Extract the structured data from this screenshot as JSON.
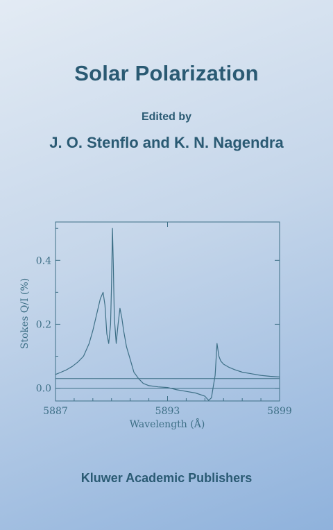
{
  "cover": {
    "title": "Solar Polarization",
    "edited_by": "Edited by",
    "editors": "J. O. Stenflo and K. N. Nagendra",
    "publisher": "Kluwer Academic Publishers"
  },
  "colors": {
    "text": "#2a5a73",
    "plot": "#3d6f86"
  },
  "chart_data": {
    "type": "line",
    "title": "",
    "xlabel": "Wavelength (Å)",
    "ylabel": "Stokes Q/I (%)",
    "xlim": [
      5887,
      5899
    ],
    "ylim": [
      -0.04,
      0.52
    ],
    "xticks": [
      5887,
      5893,
      5899
    ],
    "xtick_labels": [
      "5887",
      "5893",
      "5899"
    ],
    "yticks": [
      0.0,
      0.2,
      0.4
    ],
    "ytick_labels": [
      "0.0",
      "0.2",
      "0.4"
    ],
    "reference_lines": [
      0.0,
      0.03
    ],
    "x": [
      5887.0,
      5887.3,
      5887.6,
      5887.9,
      5888.2,
      5888.5,
      5888.8,
      5889.0,
      5889.2,
      5889.4,
      5889.55,
      5889.65,
      5889.75,
      5889.85,
      5889.95,
      5890.0,
      5890.05,
      5890.1,
      5890.15,
      5890.25,
      5890.35,
      5890.45,
      5890.55,
      5890.65,
      5890.8,
      5891.0,
      5891.2,
      5891.45,
      5891.7,
      5892.0,
      5892.5,
      5893.0,
      5893.5,
      5894.0,
      5894.5,
      5895.0,
      5895.2,
      5895.35,
      5895.45,
      5895.55,
      5895.65,
      5895.75,
      5895.85,
      5896.0,
      5896.3,
      5896.6,
      5897.0,
      5897.5,
      5898.0,
      5898.5,
      5899.0
    ],
    "y": [
      0.043,
      0.05,
      0.058,
      0.068,
      0.082,
      0.1,
      0.14,
      0.18,
      0.23,
      0.28,
      0.3,
      0.26,
      0.17,
      0.14,
      0.2,
      0.33,
      0.5,
      0.38,
      0.22,
      0.14,
      0.2,
      0.25,
      0.22,
      0.18,
      0.13,
      0.09,
      0.05,
      0.03,
      0.015,
      0.008,
      0.004,
      0.002,
      -0.005,
      -0.01,
      -0.015,
      -0.025,
      -0.038,
      -0.03,
      0.005,
      0.04,
      0.14,
      0.1,
      0.085,
      0.075,
      0.065,
      0.058,
      0.05,
      0.045,
      0.04,
      0.037,
      0.035
    ]
  }
}
